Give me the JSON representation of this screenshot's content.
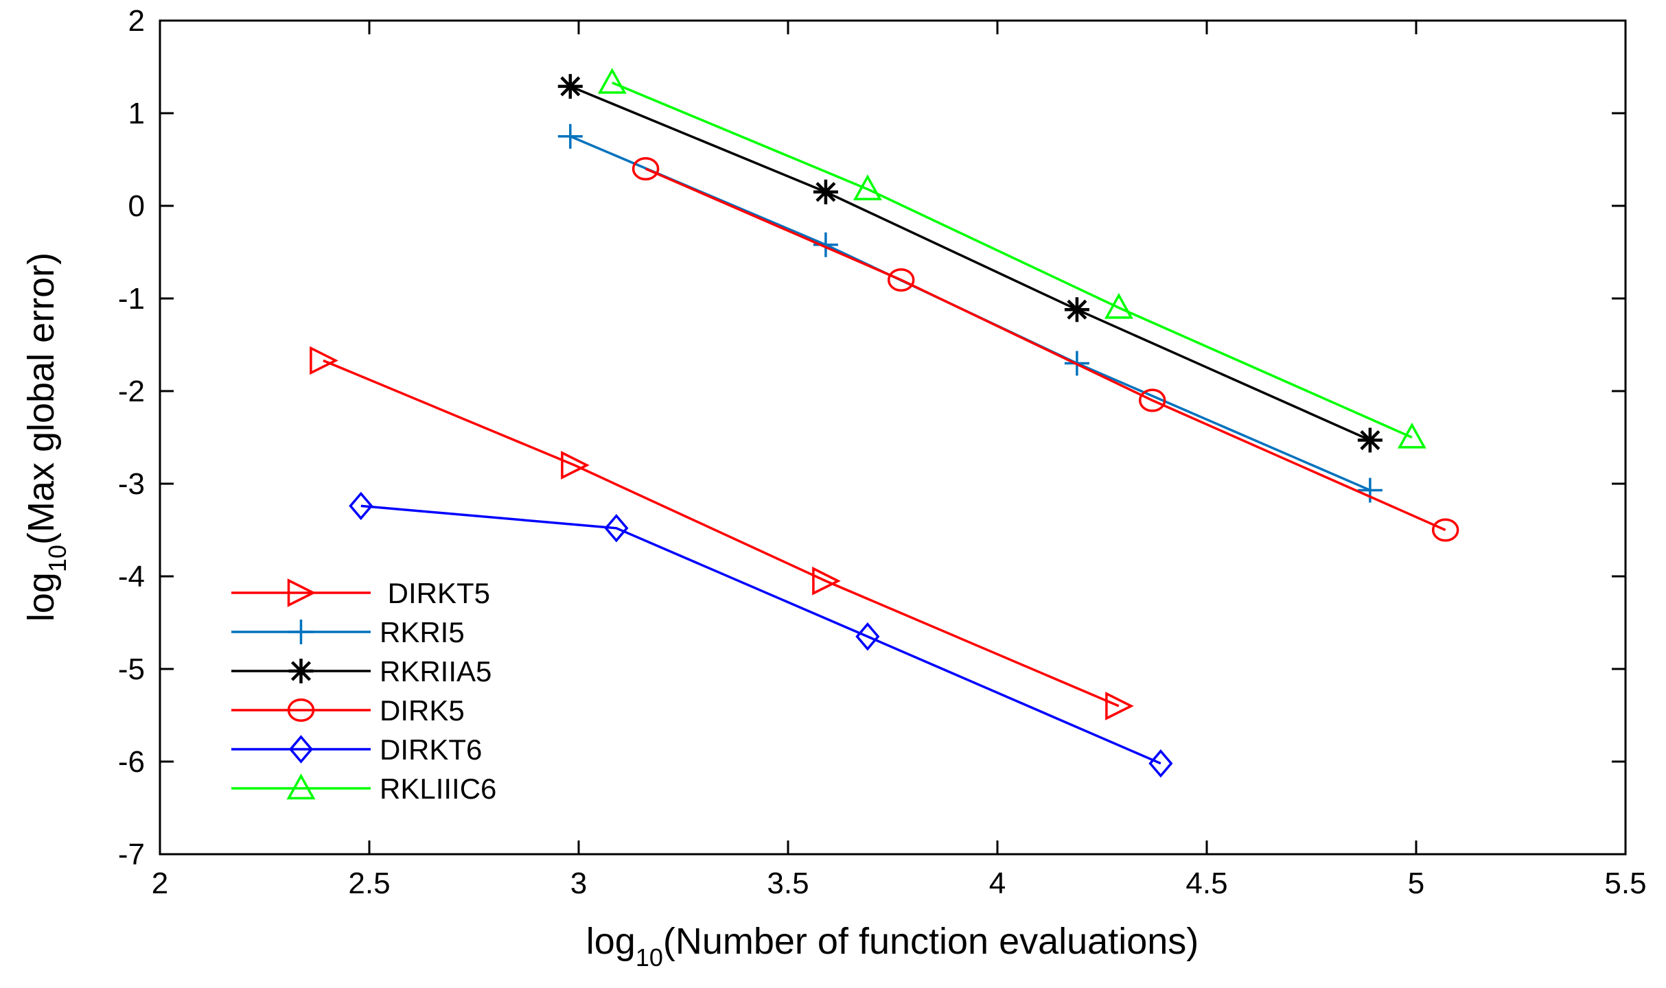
{
  "chart_data": {
    "type": "line",
    "title": "",
    "xlabel": {
      "prefix": "log",
      "sub": "10",
      "rest": "(Number of function evaluations)"
    },
    "ylabel": {
      "prefix": "log",
      "sub": "10",
      "rest": "(Max global error)"
    },
    "xlim": [
      2,
      5.5
    ],
    "ylim": [
      -7,
      2
    ],
    "xticks": [
      "2",
      "2.5",
      "3",
      "3.5",
      "4",
      "4.5",
      "5",
      "5.5"
    ],
    "yticks": [
      "2",
      "1",
      "0",
      "-1",
      "-2",
      "-3",
      "-4",
      "-5",
      "-6",
      "-7"
    ],
    "grid": false,
    "legend_position": "lower-left",
    "series": [
      {
        "name": " DIRKT5",
        "color": "#ff0000",
        "marker": "triangle-right",
        "x": [
          2.39,
          2.99,
          3.59,
          4.29
        ],
        "y": [
          -1.67,
          -2.8,
          -4.05,
          -5.4
        ]
      },
      {
        "name": "RKRI5",
        "color": "#0072bd",
        "marker": "plus",
        "x": [
          2.98,
          3.59,
          4.19,
          4.89
        ],
        "y": [
          0.75,
          -0.42,
          -1.7,
          -3.07
        ]
      },
      {
        "name": "RKRIIA5",
        "color": "#000000",
        "marker": "asterisk",
        "x": [
          2.98,
          3.59,
          4.19,
          4.89
        ],
        "y": [
          1.29,
          0.15,
          -1.12,
          -2.53
        ]
      },
      {
        "name": "DIRK5",
        "color": "#ff0000",
        "marker": "circle",
        "x": [
          3.16,
          3.77,
          4.37,
          5.07
        ],
        "y": [
          0.4,
          -0.8,
          -2.1,
          -3.5
        ]
      },
      {
        "name": "DIRKT6",
        "color": "#0000ff",
        "marker": "diamond",
        "x": [
          2.48,
          3.09,
          3.69,
          4.39
        ],
        "y": [
          -3.24,
          -3.48,
          -4.65,
          -6.02
        ]
      },
      {
        "name": "RKLIIIC6",
        "color": "#00ff00",
        "marker": "triangle-up",
        "x": [
          3.08,
          3.69,
          4.29,
          4.99
        ],
        "y": [
          1.33,
          0.18,
          -1.1,
          -2.5
        ]
      }
    ]
  }
}
